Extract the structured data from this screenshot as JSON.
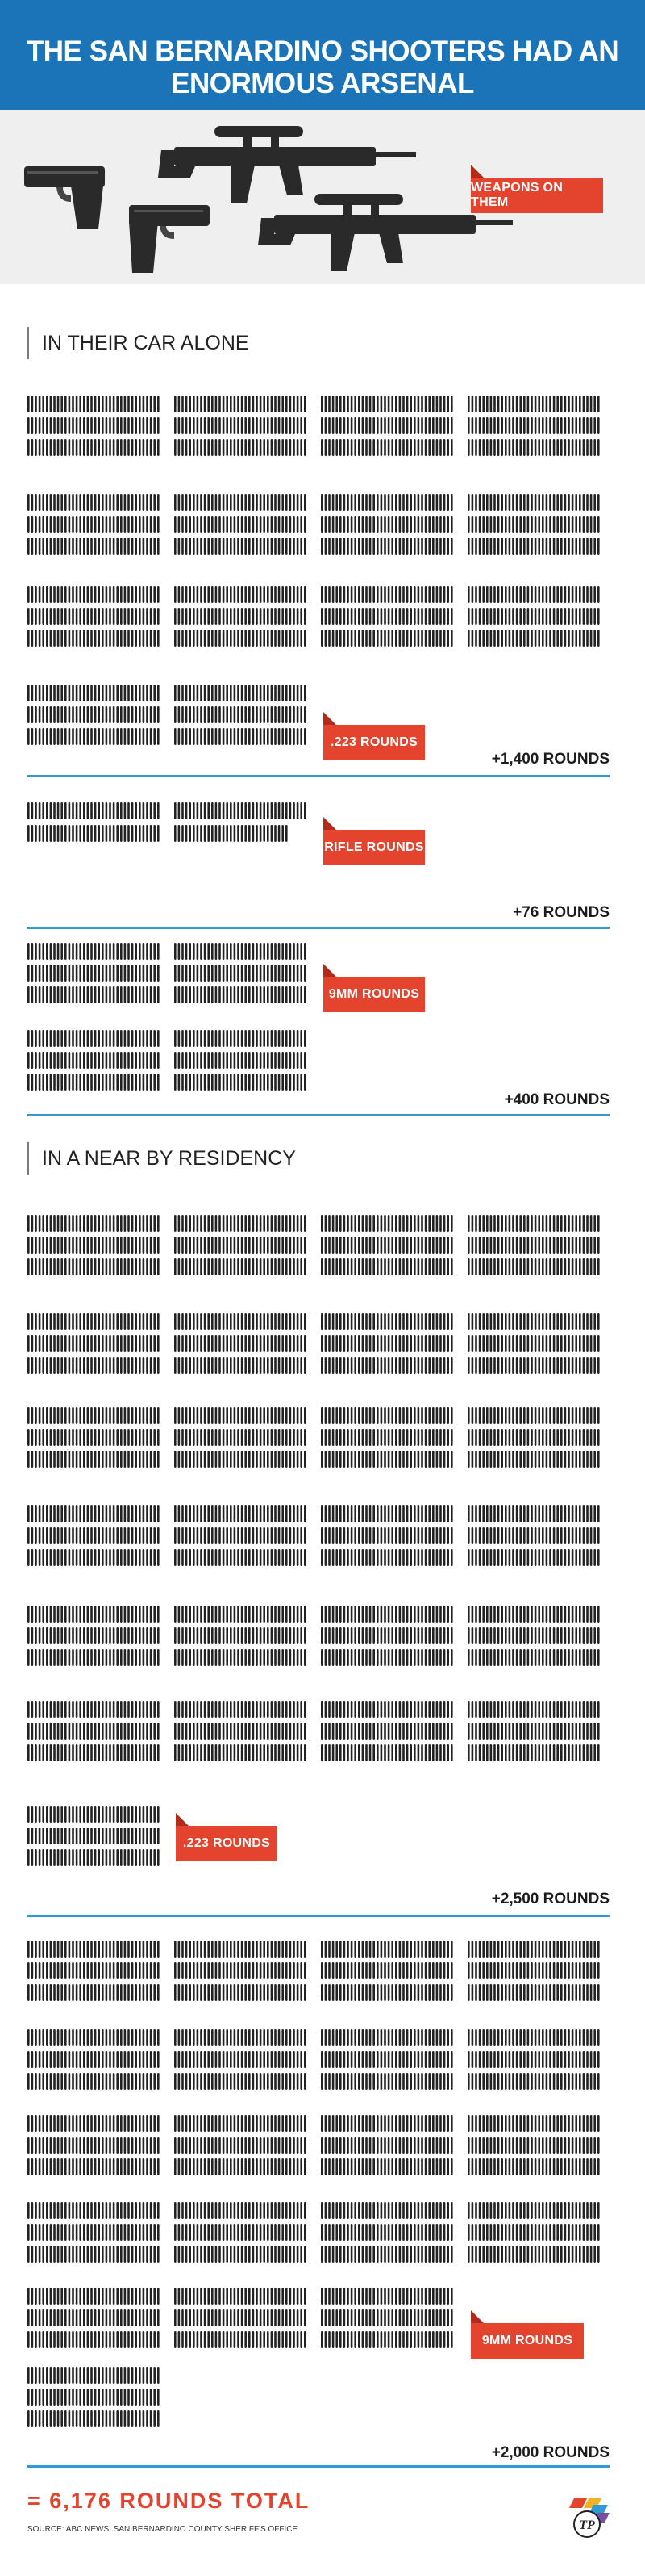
{
  "header": {
    "title": "THE SAN BERNARDINO SHOOTERS HAD  AN ENORMOUS ARSENAL"
  },
  "weapons": {
    "tag": "WEAPONS ON THEM"
  },
  "car": {
    "heading": "IN THEIR CAR ALONE",
    "groups": [
      {
        "label": ".223 ROUNDS",
        "sum": "+1,400 ROUNDS"
      },
      {
        "label": "RIFLE ROUNDS",
        "sum": "+76 ROUNDS"
      },
      {
        "label": "9MM ROUNDS",
        "sum": "+400 ROUNDS"
      }
    ]
  },
  "residency": {
    "heading": "IN A NEAR BY RESIDENCY",
    "groups": [
      {
        "label": ".223 ROUNDS",
        "sum": "+2,500 ROUNDS"
      },
      {
        "label": "9MM ROUNDS",
        "sum": "+2,000 ROUNDS"
      }
    ]
  },
  "footer": {
    "total": "= 6,176 ROUNDS TOTAL",
    "source": "SOURCE: ABC NEWS, SAN BERNARDINO COUNTY SHERIFF'S OFFICE",
    "logo_text": "TP"
  },
  "colors": {
    "header": "#1c74b8",
    "accent": "#e4432d",
    "rule": "#2f9bd2",
    "bullet": "#222222"
  }
}
